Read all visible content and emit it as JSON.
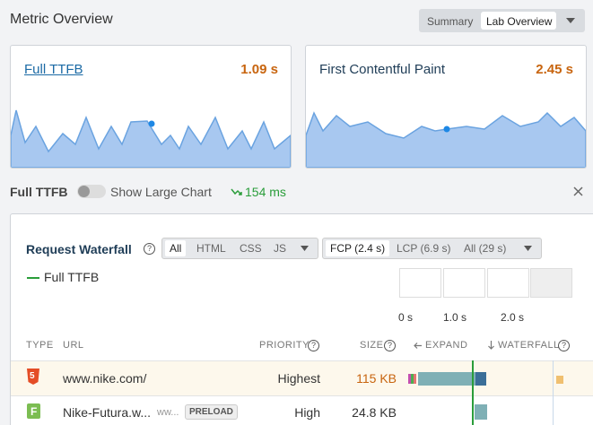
{
  "header": {
    "title": "Metric Overview",
    "tabs": [
      "Summary",
      "Lab Overview"
    ]
  },
  "cards": [
    {
      "label": "Full TTFB",
      "value": "1.09 s"
    },
    {
      "label": "First Contentful Paint",
      "value": "2.45 s"
    }
  ],
  "metric_bar": {
    "label": "Full TTFB",
    "toggle_label": "Show Large Chart",
    "change": "154 ms"
  },
  "waterfall": {
    "title": "Request Waterfall",
    "type_filters": [
      "All",
      "HTML",
      "CSS",
      "JS"
    ],
    "milestones": [
      "FCP (2.4 s)",
      "LCP (6.9 s)",
      "All (29 s)"
    ],
    "legend": "Full TTFB",
    "timeline": [
      "0 s",
      "1.0 s",
      "2.0 s"
    ],
    "columns": [
      "TYPE",
      "URL",
      "PRIORITY",
      "SIZE",
      "EXPAND",
      "WATERFALL"
    ],
    "rows": [
      {
        "type": "5",
        "url": "www.nike.com/",
        "priority": "Highest",
        "size": "115 KB"
      },
      {
        "type": "F",
        "url": "Nike-Futura.w...",
        "domain": "ww...",
        "badge": "PRELOAD",
        "priority": "High",
        "size": "24.8 KB"
      }
    ]
  }
}
